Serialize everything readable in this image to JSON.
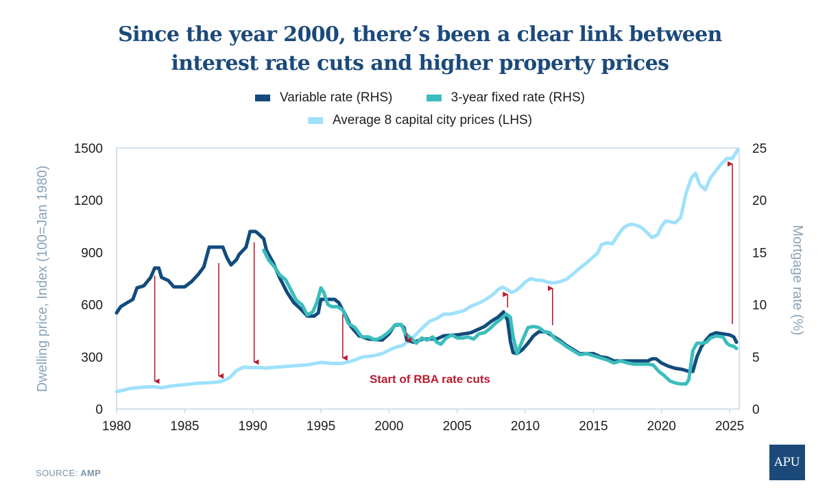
{
  "title_line1": "Since the year 2000, there’s been a clear link between",
  "title_line2": "interest rate cuts and higher property prices",
  "legend": [
    {
      "label": "Variable rate (RHS)",
      "color": "#124b7c"
    },
    {
      "label": "3-year fixed rate (RHS)",
      "color": "#3bbdbd"
    },
    {
      "label": "Average 8 capital city prices (LHS)",
      "color": "#9fe1fb"
    }
  ],
  "source_prefix": "SOURCE: ",
  "source_name": "AMP",
  "logo_text": "APU",
  "annotation_text": "Start of RBA rate cuts",
  "annotation_color": "#b81c30",
  "chart_data": {
    "type": "line",
    "title": "Since the year 2000, there’s been a clear link between interest rate cuts and higher property prices",
    "xlabel": "",
    "ylabel_left": "Dwelling price, Index (100=Jan 1980)",
    "ylabel_right": "Mortgage rate (%)",
    "xlim": [
      1980,
      2025.7
    ],
    "ylim_left": [
      0,
      1500
    ],
    "ylim_right": [
      0,
      25
    ],
    "x_ticks": [
      "1980",
      "1985",
      "1990",
      "1995",
      "2000",
      "2005",
      "2010",
      "2015",
      "2020",
      "2025"
    ],
    "y_ticks_left": [
      "0",
      "300",
      "600",
      "900",
      "1200",
      "1500"
    ],
    "y_ticks_right": [
      "0",
      "5",
      "10",
      "15",
      "20",
      "25"
    ],
    "grid": false,
    "legend_position": "top-center",
    "series": [
      {
        "name": "Variable rate (RHS)",
        "axis": "right",
        "color": "#124b7c",
        "x": [
          1980,
          1980.3,
          1980.8,
          1981.2,
          1981.5,
          1982.0,
          1982.5,
          1982.8,
          1983.1,
          1983.3,
          1983.8,
          1984.2,
          1985.0,
          1985.5,
          1986.0,
          1986.4,
          1986.8,
          1987.0,
          1987.8,
          1988.1,
          1988.4,
          1988.8,
          1989.0,
          1989.5,
          1989.8,
          1990.2,
          1990.4,
          1990.8,
          1991.0,
          1991.5,
          1992.0,
          1992.5,
          1993.0,
          1993.5,
          1994.0,
          1994.5,
          1994.8,
          1995.0,
          1996.0,
          1996.3,
          1996.8,
          1997.2,
          1997.8,
          1998.5,
          1999.5,
          2000.0,
          2000.4,
          2000.8,
          2001.1,
          2001.3,
          2001.8,
          2002.5,
          2003.5,
          2004.0,
          2005.0,
          2006.0,
          2006.5,
          2007.0,
          2007.5,
          2008.0,
          2008.4,
          2008.7,
          2008.9,
          2009.1,
          2009.4,
          2009.8,
          2010.2,
          2010.6,
          2011.0,
          2011.5,
          2012.0,
          2012.5,
          2013.0,
          2013.5,
          2014.0,
          2015.0,
          2015.5,
          2016.0,
          2016.5,
          2017.0,
          2018.0,
          2019.0,
          2019.3,
          2019.6,
          2020.0,
          2020.5,
          2021.0,
          2021.5,
          2022.0,
          2022.3,
          2022.6,
          2022.9,
          2023.2,
          2023.6,
          2024.0,
          2024.5,
          2025.0,
          2025.3,
          2025.5
        ],
        "values": [
          9.2,
          9.8,
          10.2,
          10.5,
          11.6,
          11.8,
          12.6,
          13.5,
          13.5,
          12.6,
          12.3,
          11.7,
          11.7,
          12.2,
          12.9,
          13.6,
          15.5,
          15.5,
          15.5,
          14.5,
          13.8,
          14.3,
          14.8,
          15.5,
          17.0,
          17.0,
          16.8,
          16.3,
          15.2,
          14.0,
          12.5,
          11.2,
          10.2,
          9.6,
          8.9,
          8.9,
          9.2,
          10.5,
          10.5,
          10.2,
          9.0,
          7.9,
          7.0,
          6.7,
          6.6,
          7.2,
          8.0,
          8.1,
          7.8,
          6.6,
          6.4,
          6.7,
          6.7,
          7.0,
          7.1,
          7.3,
          7.6,
          7.9,
          8.4,
          8.8,
          9.3,
          8.5,
          6.5,
          5.4,
          5.3,
          5.7,
          6.3,
          7.0,
          7.4,
          7.4,
          7.0,
          6.6,
          6.1,
          5.7,
          5.3,
          5.3,
          5.0,
          4.9,
          4.6,
          4.6,
          4.6,
          4.6,
          4.8,
          4.8,
          4.4,
          4.1,
          3.9,
          3.8,
          3.6,
          3.6,
          5.0,
          5.9,
          6.5,
          7.1,
          7.3,
          7.2,
          7.1,
          6.9,
          6.4
        ]
      },
      {
        "name": "3-year fixed rate (RHS)",
        "axis": "right",
        "color": "#3bbdbd",
        "x": [
          1990.8,
          1991.2,
          1991.6,
          1992.0,
          1992.4,
          1992.8,
          1993.2,
          1993.6,
          1994.0,
          1994.4,
          1994.7,
          1995.0,
          1995.2,
          1995.5,
          1995.8,
          1996.2,
          1996.6,
          1997.0,
          1997.5,
          1998.0,
          1998.5,
          1999.0,
          1999.5,
          2000.0,
          2000.5,
          2000.9,
          2001.2,
          2001.6,
          2002.0,
          2002.4,
          2002.8,
          2003.2,
          2003.5,
          2003.8,
          2004.2,
          2004.6,
          2005.0,
          2005.4,
          2005.8,
          2006.2,
          2006.6,
          2007.0,
          2007.4,
          2007.8,
          2008.2,
          2008.6,
          2008.9,
          2009.1,
          2009.4,
          2009.8,
          2010.2,
          2010.6,
          2011.0,
          2011.4,
          2011.8,
          2012.2,
          2012.6,
          2013.0,
          2013.5,
          2014.0,
          2014.5,
          2015.0,
          2015.5,
          2016.0,
          2016.5,
          2017.0,
          2017.5,
          2018.0,
          2018.5,
          2019.0,
          2019.4,
          2019.8,
          2020.2,
          2020.6,
          2021.0,
          2021.4,
          2021.8,
          2022.0,
          2022.3,
          2022.6,
          2023.0,
          2023.3,
          2023.6,
          2024.0,
          2024.5,
          2024.8,
          2025.0,
          2025.3,
          2025.5
        ],
        "values": [
          15.2,
          14.2,
          13.6,
          12.8,
          12.4,
          11.4,
          10.4,
          10.0,
          9.0,
          9.3,
          10.2,
          11.6,
          11.2,
          10.0,
          9.8,
          9.8,
          9.5,
          8.2,
          7.8,
          6.9,
          6.9,
          6.6,
          6.9,
          7.4,
          8.1,
          8.1,
          7.2,
          6.8,
          6.3,
          6.8,
          6.6,
          6.9,
          6.4,
          6.2,
          6.8,
          7.1,
          6.8,
          6.8,
          6.9,
          6.7,
          7.2,
          7.3,
          7.7,
          8.2,
          8.6,
          9.1,
          8.8,
          7.0,
          5.3,
          6.6,
          7.8,
          7.9,
          7.8,
          7.4,
          7.3,
          6.7,
          6.4,
          6.0,
          5.6,
          5.2,
          5.3,
          5.1,
          4.9,
          4.7,
          4.4,
          4.6,
          4.4,
          4.3,
          4.3,
          4.3,
          4.2,
          3.6,
          3.2,
          2.7,
          2.5,
          2.4,
          2.4,
          2.8,
          5.6,
          6.3,
          6.3,
          6.4,
          6.8,
          7.0,
          6.9,
          6.3,
          6.1,
          6.0,
          5.8
        ]
      },
      {
        "name": "Average 8 capital city prices (LHS)",
        "axis": "left",
        "color": "#9fe1fb",
        "x": [
          1980,
          1980.5,
          1981,
          1982,
          1982.7,
          1983.3,
          1984,
          1985,
          1986,
          1987,
          1987.7,
          1988.3,
          1988.8,
          1989.3,
          1989.8,
          1990.5,
          1991,
          1992,
          1993,
          1994,
          1995,
          1995.8,
          1996.5,
          1997,
          1997.5,
          1998,
          1998.8,
          1999.5,
          2000,
          2000.5,
          2001,
          2001.5,
          2002,
          2002.5,
          2003,
          2003.5,
          2004,
          2004.5,
          2005,
          2005.5,
          2006,
          2006.5,
          2007,
          2007.5,
          2008,
          2008.3,
          2008.6,
          2009,
          2009.3,
          2009.7,
          2010,
          2010.4,
          2010.8,
          2011.2,
          2011.6,
          2012,
          2012.5,
          2013,
          2013.5,
          2014,
          2014.5,
          2015,
          2015.3,
          2015.6,
          2016,
          2016.4,
          2016.8,
          2017.2,
          2017.6,
          2018,
          2018.5,
          2019,
          2019.3,
          2019.7,
          2020,
          2020.3,
          2020.7,
          2021,
          2021.4,
          2021.8,
          2022.2,
          2022.5,
          2022.8,
          2023.2,
          2023.6,
          2024,
          2024.4,
          2024.8,
          2025.2,
          2025.6
        ],
        "values": [
          100,
          108,
          118,
          126,
          128,
          122,
          132,
          140,
          148,
          152,
          158,
          180,
          220,
          240,
          238,
          238,
          235,
          242,
          248,
          254,
          268,
          262,
          262,
          270,
          282,
          298,
          305,
          318,
          338,
          355,
          365,
          395,
          430,
          470,
          505,
          520,
          545,
          545,
          555,
          565,
          590,
          605,
          625,
          650,
          685,
          700,
          690,
          670,
          680,
          705,
          730,
          750,
          740,
          740,
          730,
          725,
          730,
          745,
          775,
          810,
          840,
          875,
          895,
          945,
          955,
          950,
          1000,
          1040,
          1060,
          1060,
          1045,
          1010,
          985,
          1000,
          1050,
          1080,
          1075,
          1070,
          1100,
          1240,
          1330,
          1355,
          1290,
          1260,
          1330,
          1370,
          1410,
          1440,
          1440,
          1490
        ]
      }
    ],
    "annotations": [
      {
        "type": "arrow",
        "direction": "down",
        "x": 1982.8,
        "from_rate": 13.3,
        "to_index": 128
      },
      {
        "type": "arrow",
        "direction": "down",
        "x": 1987.5,
        "from_rate": 14.5,
        "to_index": 158
      },
      {
        "type": "arrow",
        "direction": "down",
        "x": 1990.1,
        "from_rate": 16.5,
        "to_index": 238
      },
      {
        "type": "arrow",
        "direction": "down",
        "x": 1996.6,
        "from_rate": 9.6,
        "to_index": 262
      },
      {
        "type": "arrow",
        "direction": "down",
        "x": 2001.3,
        "from_rate": 7.8,
        "to_index": 365
      },
      {
        "type": "arrow",
        "direction": "up",
        "x": 2008.7,
        "from_rate": 9.2,
        "to_index": 690
      },
      {
        "type": "arrow",
        "direction": "up",
        "x": 2012.0,
        "from_rate": 7.5,
        "to_index": 725
      },
      {
        "type": "arrow",
        "direction": "up",
        "x": 2025.2,
        "from_rate": 7.6,
        "to_index": 1440
      },
      {
        "type": "text",
        "label": "Start of RBA rate cuts",
        "x": 2003.0,
        "index": 150
      }
    ]
  }
}
